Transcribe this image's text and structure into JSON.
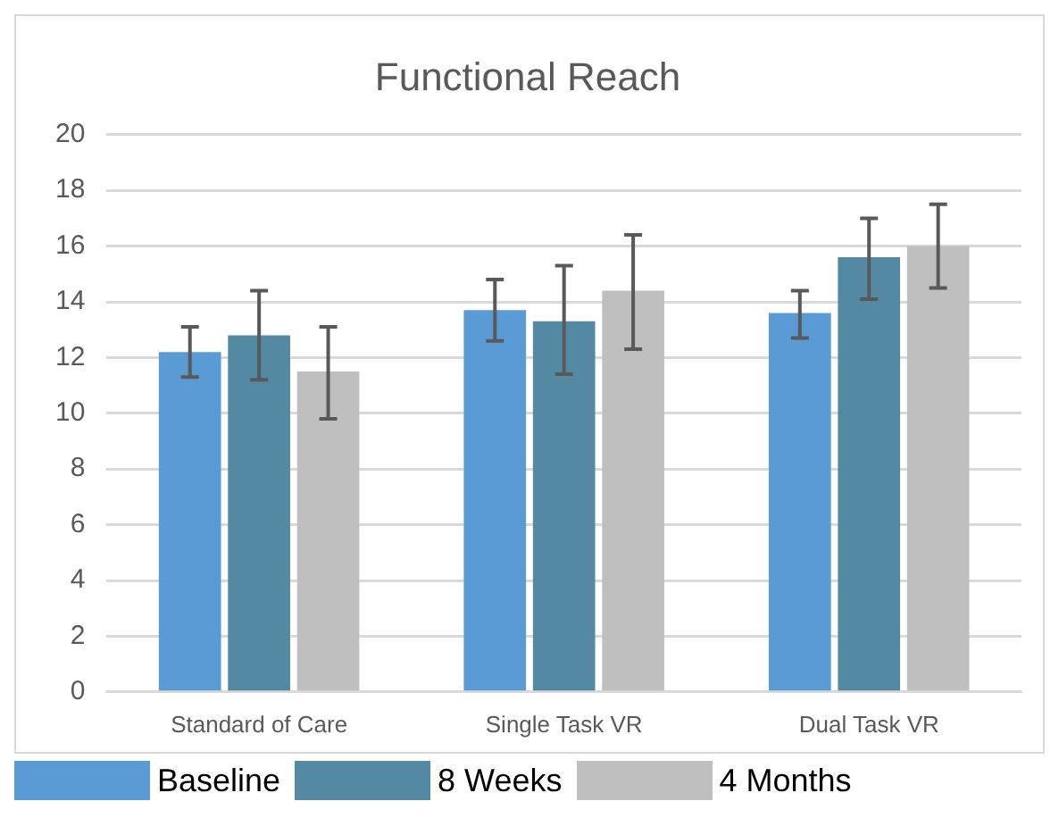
{
  "chart_data": {
    "type": "bar",
    "title": "Functional Reach",
    "categories": [
      "Standard of Care",
      "Single Task VR",
      "Dual Task VR"
    ],
    "series": [
      {
        "name": "Baseline",
        "color": "#5b9bd5",
        "values": [
          12.2,
          13.7,
          13.6
        ],
        "errors": [
          [
            11.3,
            13.1
          ],
          [
            12.6,
            14.8
          ],
          [
            12.7,
            14.4
          ]
        ]
      },
      {
        "name": "8 Weeks",
        "color": "#5389a3",
        "values": [
          12.8,
          13.3,
          15.6
        ],
        "errors": [
          [
            11.2,
            14.4
          ],
          [
            11.4,
            15.3
          ],
          [
            14.1,
            17.0
          ]
        ]
      },
      {
        "name": "4 Months",
        "color": "#bfbfbf",
        "values": [
          11.5,
          14.4,
          16.0
        ],
        "errors": [
          [
            9.8,
            13.1
          ],
          [
            12.3,
            16.4
          ],
          [
            14.5,
            17.5
          ]
        ]
      }
    ],
    "ylim": [
      0,
      20
    ],
    "yticks": [
      0,
      2,
      4,
      6,
      8,
      10,
      12,
      14,
      16,
      18,
      20
    ],
    "grid": "y",
    "legend": "bottom"
  }
}
